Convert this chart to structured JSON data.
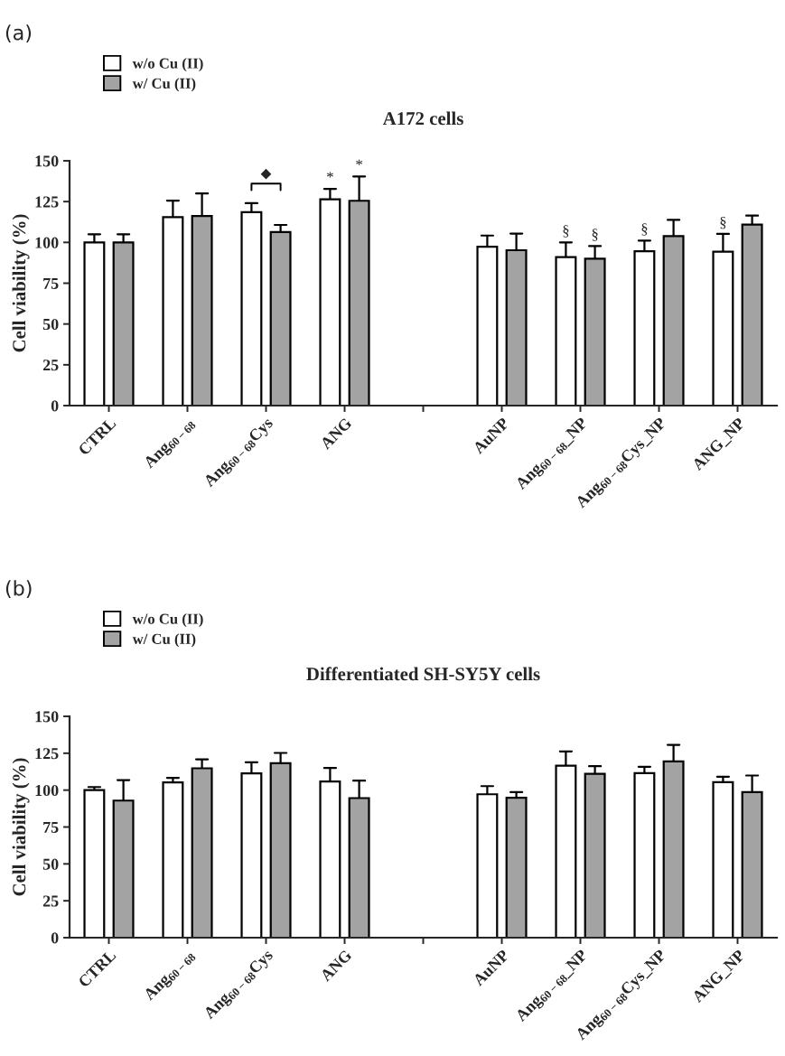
{
  "chart_data": [
    {
      "type": "bar",
      "title": "A172 cells",
      "ylabel": "Cell viability (%)",
      "legend": "top left",
      "categories": [
        "CTRL",
        "Ang$_{60−68}$",
        "Ang$_{60−68}$Cys",
        "ANG",
        null,
        "AuNP",
        "Ang$_{60−68}$_NP",
        "Ang$_{60−68}$Cys_NP",
        "ANG_NP"
      ],
      "series": [
        {
          "name": "w/o Cu (II)",
          "color": "#ffffff",
          "values": [
            100,
            115.5,
            118.5,
            126.4,
            null,
            97.4,
            91,
            94.6,
            94.3
          ],
          "errors": [
            [
              100,
              105
            ],
            [
              115.5,
              125.6
            ],
            [
              118.5,
              124
            ],
            [
              126.4,
              132.8
            ],
            null,
            [
              97.4,
              104.2
            ],
            [
              91,
              100
            ],
            [
              94.6,
              101.1
            ],
            [
              94.3,
              105.2
            ]
          ],
          "value_labels": [
            null,
            null,
            null,
            "*",
            null,
            null,
            "§",
            "§",
            "§"
          ]
        },
        {
          "name": "w/ Cu (II)",
          "color": "#a3a3a3",
          "values": [
            100,
            116.2,
            106.3,
            125.5,
            null,
            95.2,
            90,
            103.9,
            110.9
          ],
          "errors": [
            [
              100,
              105
            ],
            [
              116.2,
              130
            ],
            [
              106.3,
              110.7
            ],
            [
              125.5,
              140.4
            ],
            null,
            [
              95.2,
              105.4
            ],
            [
              90,
              97.8
            ],
            [
              103.9,
              113.8
            ],
            [
              110.9,
              116.4
            ]
          ],
          "value_labels": [
            null,
            null,
            null,
            "*",
            null,
            null,
            "§",
            null,
            null
          ]
        }
      ],
      "ylim": [
        0,
        150
      ],
      "yticks": [
        0,
        25,
        50,
        75,
        100,
        125,
        150
      ],
      "grid": false,
      "annotations": [
        "(a)",
        "◆"
      ]
    },
    {
      "type": "bar",
      "title": "Differentiated SH-SY5Y cells",
      "ylabel": "Cell viability (%)",
      "legend": "top left",
      "categories": [
        "CTRL",
        "Ang$_{60−68}$",
        "Ang$_{60−68}$Cys",
        "ANG",
        null,
        "AuNP",
        "Ang$_{60−68}$_NP",
        "Ang$_{60−68}$Cys_NP",
        "ANG_NP"
      ],
      "series": [
        {
          "name": "w/o Cu (II)",
          "color": "#ffffff",
          "values": [
            100,
            105.2,
            111.3,
            105.8,
            null,
            97.2,
            116.6,
            111.5,
            105.4
          ],
          "errors": [
            [
              100,
              102.1
            ],
            [
              105.2,
              108.3
            ],
            [
              111.3,
              118.9
            ],
            [
              105.8,
              115
            ],
            null,
            [
              97.2,
              102.7
            ],
            [
              116.6,
              126.2
            ],
            [
              111.5,
              115.8
            ],
            [
              105.4,
              109.1
            ]
          ]
        },
        {
          "name": "w/ Cu (II)",
          "color": "#a3a3a3",
          "values": [
            92.9,
            114.8,
            118.3,
            94.6,
            null,
            94.8,
            111.1,
            119.5,
            98.7
          ],
          "errors": [
            [
              92.9,
              106.8
            ],
            [
              114.8,
              120.9
            ],
            [
              118.3,
              125.2
            ],
            [
              94.6,
              106.4
            ],
            null,
            [
              94.8,
              98.7
            ],
            [
              111.1,
              116.2
            ],
            [
              119.5,
              130.7
            ],
            [
              98.7,
              109.9
            ]
          ]
        }
      ],
      "ylim": [
        0,
        150
      ],
      "yticks": [
        0,
        25,
        50,
        75,
        100,
        125,
        150
      ],
      "grid": false,
      "annotations": [
        "(b)"
      ]
    }
  ]
}
